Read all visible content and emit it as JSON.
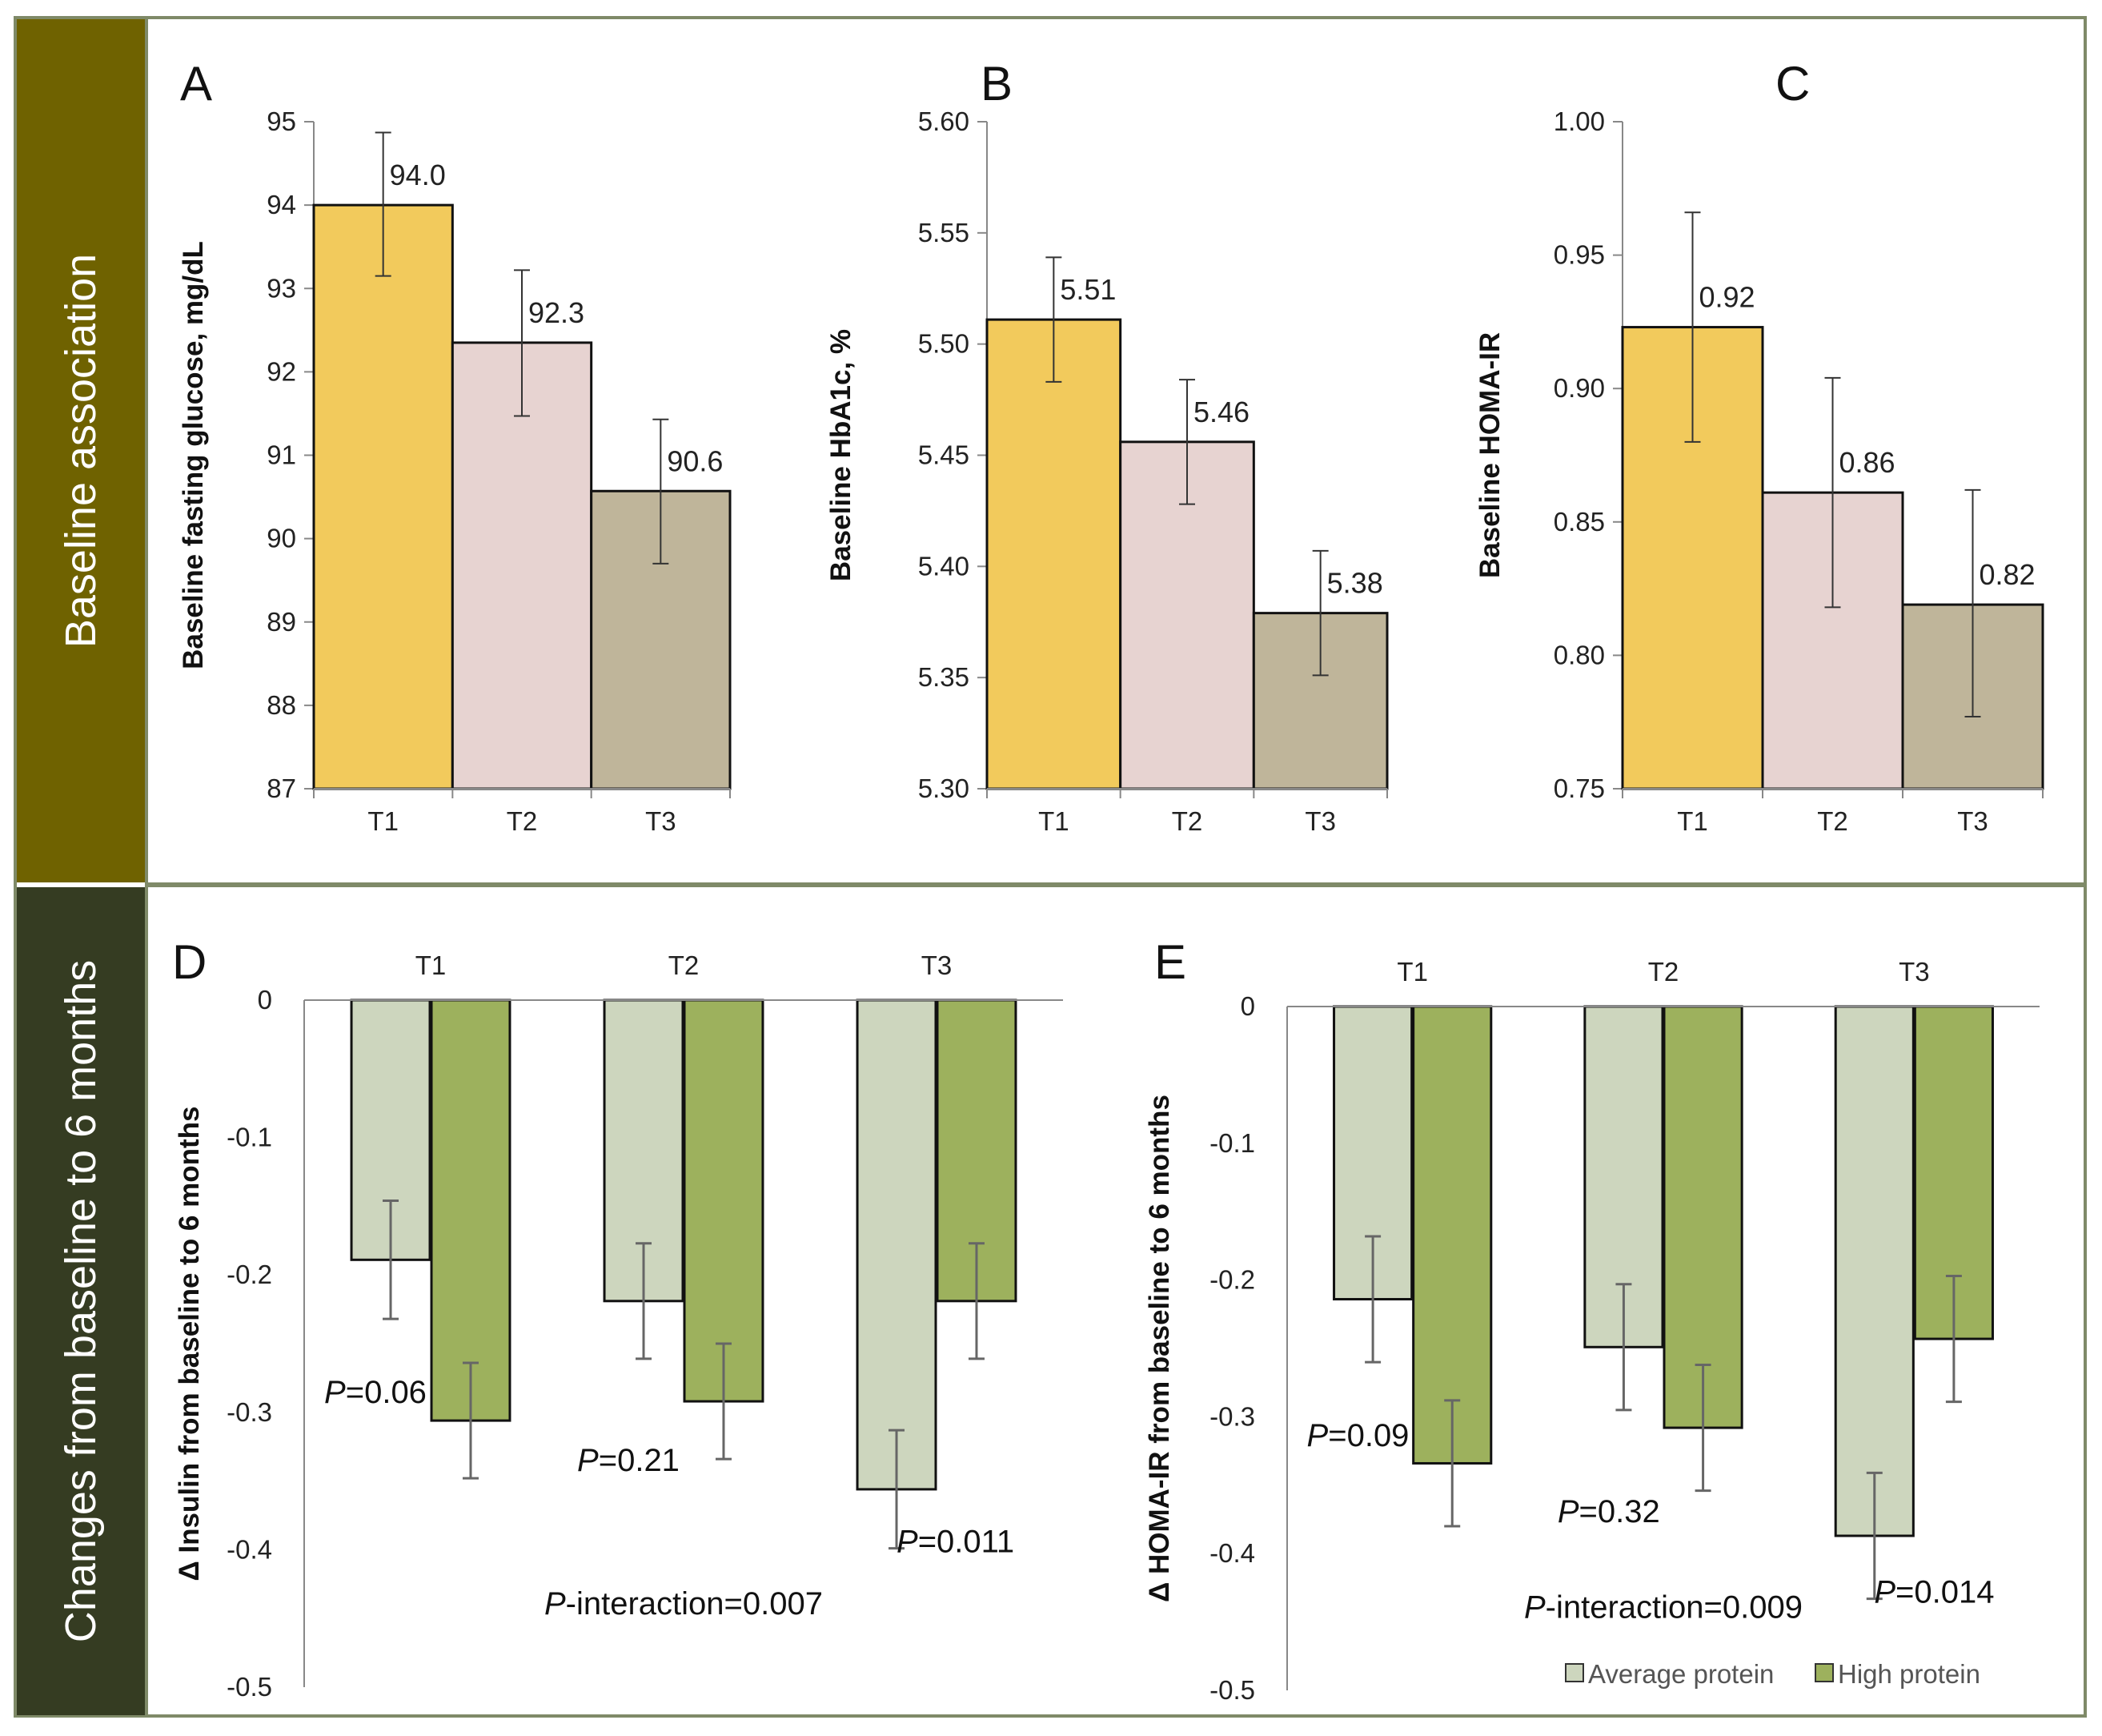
{
  "sections": {
    "top_label": "Baseline association",
    "bottom_label": "Changes from baseline to 6 months",
    "top_color": "#6f6200",
    "bottom_color": "#353c22"
  },
  "colors": {
    "T1": "#f2ca5c",
    "T2": "#e7d3d1",
    "T3": "#bfb59a",
    "average_protein": "#cdd6be",
    "high_protein": "#9db15d"
  },
  "chart_data": [
    {
      "panel": "A",
      "type": "bar",
      "categories": [
        "T1",
        "T2",
        "T3"
      ],
      "values": [
        94.0,
        92.35,
        90.57
      ],
      "value_labels": [
        "94.0",
        "92.3",
        "90.6"
      ],
      "error_low": [
        93.15,
        91.47,
        89.7
      ],
      "error_high": [
        94.87,
        93.22,
        91.43
      ],
      "ylabel": "Baseline fasting glucose, mg/dL",
      "ylim": [
        87,
        95
      ],
      "yticks": [
        95,
        94,
        93,
        92,
        91,
        90,
        89,
        88,
        87
      ],
      "ytick_labels": [
        "95",
        "94",
        "93",
        "92",
        "91",
        "90",
        "89",
        "88",
        "87"
      ]
    },
    {
      "panel": "B",
      "type": "bar",
      "categories": [
        "T1",
        "T2",
        "T3"
      ],
      "values": [
        5.511,
        5.456,
        5.379
      ],
      "value_labels": [
        "5.51",
        "5.46",
        "5.38"
      ],
      "error_low": [
        5.483,
        5.428,
        5.351
      ],
      "error_high": [
        5.539,
        5.484,
        5.407
      ],
      "ylabel": "Baseline HbA1c, %",
      "ylim": [
        5.3,
        5.6
      ],
      "yticks": [
        5.6,
        5.55,
        5.5,
        5.45,
        5.4,
        5.35,
        5.3
      ],
      "ytick_labels": [
        "5.60",
        "5.55",
        "5.50",
        "5.45",
        "5.40",
        "5.35",
        "5.30"
      ]
    },
    {
      "panel": "C",
      "type": "bar",
      "categories": [
        "T1",
        "T2",
        "T3"
      ],
      "values": [
        0.923,
        0.861,
        0.819
      ],
      "value_labels": [
        "0.92",
        "0.86",
        "0.82"
      ],
      "error_low": [
        0.88,
        0.818,
        0.777
      ],
      "error_high": [
        0.966,
        0.904,
        0.862
      ],
      "ylabel": "Baseline HOMA-IR",
      "ylim": [
        0.75,
        1.0
      ],
      "yticks": [
        1.0,
        0.95,
        0.9,
        0.85,
        0.8,
        0.75
      ],
      "ytick_labels": [
        "1.00",
        "0.95",
        "0.90",
        "0.85",
        "0.80",
        "0.75"
      ]
    },
    {
      "panel": "D",
      "type": "bar",
      "categories": [
        "T1",
        "T2",
        "T3"
      ],
      "series": [
        {
          "name": "Average protein",
          "values": [
            -0.189,
            -0.219,
            -0.356
          ],
          "error_low": [
            -0.232,
            -0.261,
            -0.399
          ],
          "error_high": [
            -0.146,
            -0.177,
            -0.313
          ]
        },
        {
          "name": "High protein",
          "values": [
            -0.306,
            -0.292,
            -0.219
          ],
          "error_low": [
            -0.348,
            -0.334,
            -0.261
          ],
          "error_high": [
            -0.264,
            -0.25,
            -0.177
          ]
        }
      ],
      "p_values": [
        "=0.06",
        "=0.21",
        "=0.011"
      ],
      "p_interaction": "-interaction=0.007",
      "p_prefix": "P",
      "ylabel": "Δ Insulin from baseline to 6 months",
      "ylim": [
        -0.5,
        0
      ],
      "yticks": [
        0,
        -0.1,
        -0.2,
        -0.3,
        -0.4,
        -0.5
      ],
      "ytick_labels": [
        "0",
        "-0.1",
        "-0.2",
        "-0.3",
        "-0.4",
        "-0.5"
      ]
    },
    {
      "panel": "E",
      "type": "bar",
      "categories": [
        "T1",
        "T2",
        "T3"
      ],
      "series": [
        {
          "name": "Average protein",
          "values": [
            -0.214,
            -0.249,
            -0.387
          ],
          "error_low": [
            -0.26,
            -0.295,
            -0.433
          ],
          "error_high": [
            -0.168,
            -0.203,
            -0.341
          ]
        },
        {
          "name": "High protein",
          "values": [
            -0.334,
            -0.308,
            -0.243
          ],
          "error_low": [
            -0.38,
            -0.354,
            -0.289
          ],
          "error_high": [
            -0.288,
            -0.262,
            -0.197
          ]
        }
      ],
      "p_values": [
        "=0.09",
        "=0.32",
        "=0.014"
      ],
      "p_interaction": "-interaction=0.009",
      "p_prefix": "P",
      "ylabel": "Δ HOMA-IR from baseline to 6 months",
      "ylim": [
        -0.5,
        0
      ],
      "yticks": [
        0,
        -0.1,
        -0.2,
        -0.3,
        -0.4,
        -0.5
      ],
      "ytick_labels": [
        "0",
        "-0.1",
        "-0.2",
        "-0.3",
        "-0.4",
        "-0.5"
      ],
      "legend": [
        "Average protein",
        "High protein"
      ]
    }
  ]
}
